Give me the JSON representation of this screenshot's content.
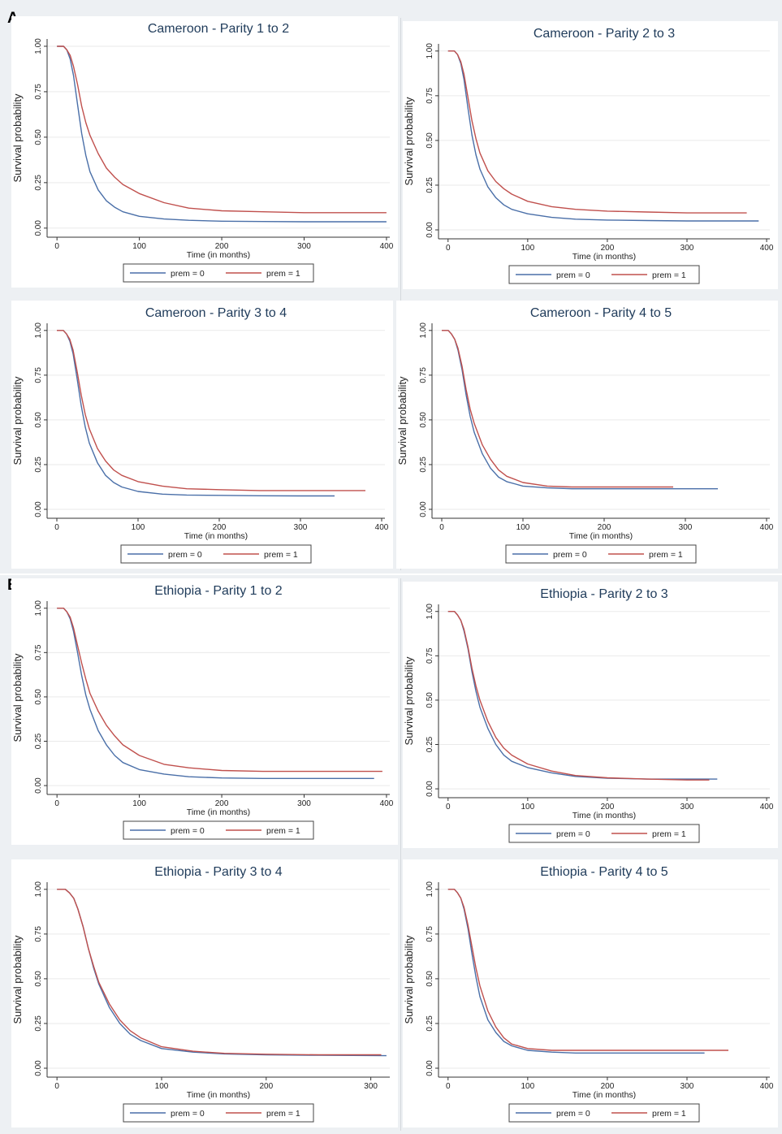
{
  "figure": {
    "panel_a_label": "A",
    "panel_b_label": "B"
  },
  "shared": {
    "ylabel": "Survival probability",
    "xlabel": "Time (in months)",
    "legend": [
      "prem = 0",
      "prem = 1"
    ],
    "colors": {
      "prem0": "#4a6fa8",
      "prem1": "#c0504d"
    }
  },
  "chart_data": [
    {
      "type": "line",
      "title": "Cameroon - Parity 1 to 2",
      "xlabel": "Time (in months)",
      "ylabel": "Survival probability",
      "xlim": [
        0,
        400
      ],
      "ylim": [
        0,
        1
      ],
      "xticks": [
        "0",
        "100",
        "200",
        "300",
        "400"
      ],
      "yticks": [
        "0.00",
        "0.25",
        "0.50",
        "0.75",
        "1.00"
      ],
      "legend": "bottom",
      "series": [
        {
          "name": "prem = 0",
          "x": [
            0,
            8,
            12,
            16,
            20,
            25,
            30,
            35,
            40,
            50,
            60,
            70,
            80,
            100,
            130,
            160,
            200,
            250,
            300,
            400
          ],
          "y": [
            1.0,
            1.0,
            0.98,
            0.93,
            0.84,
            0.68,
            0.52,
            0.4,
            0.31,
            0.21,
            0.15,
            0.115,
            0.09,
            0.065,
            0.05,
            0.043,
            0.038,
            0.036,
            0.035,
            0.035
          ]
        },
        {
          "name": "prem = 1",
          "x": [
            0,
            8,
            12,
            16,
            20,
            25,
            30,
            35,
            40,
            50,
            60,
            70,
            80,
            100,
            130,
            160,
            200,
            250,
            300,
            400
          ],
          "y": [
            1.0,
            1.0,
            0.98,
            0.95,
            0.89,
            0.79,
            0.67,
            0.58,
            0.51,
            0.41,
            0.33,
            0.28,
            0.24,
            0.19,
            0.14,
            0.11,
            0.095,
            0.09,
            0.085,
            0.085
          ]
        }
      ]
    },
    {
      "type": "line",
      "title": "Cameroon - Parity 2 to 3",
      "xlabel": "Time (in months)",
      "ylabel": "Survival probability",
      "xlim": [
        0,
        400
      ],
      "ylim": [
        0,
        1
      ],
      "xticks": [
        "0",
        "100",
        "200",
        "300",
        "400"
      ],
      "yticks": [
        "0.00",
        "0.25",
        "0.50",
        "0.75",
        "1.00"
      ],
      "legend": "bottom",
      "series": [
        {
          "name": "prem = 0",
          "x": [
            0,
            8,
            12,
            16,
            20,
            25,
            30,
            35,
            40,
            50,
            60,
            70,
            80,
            100,
            130,
            160,
            200,
            250,
            300,
            390
          ],
          "y": [
            1.0,
            1.0,
            0.98,
            0.93,
            0.84,
            0.68,
            0.53,
            0.42,
            0.34,
            0.24,
            0.18,
            0.14,
            0.115,
            0.09,
            0.07,
            0.06,
            0.055,
            0.052,
            0.05,
            0.05
          ]
        },
        {
          "name": "prem = 1",
          "x": [
            0,
            8,
            12,
            16,
            20,
            25,
            30,
            35,
            40,
            50,
            60,
            70,
            80,
            100,
            130,
            160,
            200,
            250,
            300,
            375
          ],
          "y": [
            1.0,
            1.0,
            0.98,
            0.94,
            0.87,
            0.74,
            0.61,
            0.51,
            0.43,
            0.33,
            0.27,
            0.23,
            0.2,
            0.16,
            0.13,
            0.115,
            0.105,
            0.1,
            0.095,
            0.095
          ]
        }
      ]
    },
    {
      "type": "line",
      "title": "Cameroon - Parity 3 to 4",
      "xlabel": "Time (in months)",
      "ylabel": "Survival probability",
      "xlim": [
        0,
        400
      ],
      "ylim": [
        0,
        1
      ],
      "xticks": [
        "0",
        "100",
        "200",
        "300",
        "400"
      ],
      "yticks": [
        "0.00",
        "0.25",
        "0.50",
        "0.75",
        "1.00"
      ],
      "legend": "bottom",
      "series": [
        {
          "name": "prem = 0",
          "x": [
            0,
            8,
            12,
            16,
            20,
            25,
            30,
            35,
            40,
            50,
            60,
            70,
            80,
            100,
            130,
            160,
            200,
            250,
            300,
            342
          ],
          "y": [
            1.0,
            1.0,
            0.98,
            0.94,
            0.87,
            0.73,
            0.58,
            0.46,
            0.37,
            0.26,
            0.19,
            0.15,
            0.125,
            0.1,
            0.085,
            0.08,
            0.078,
            0.076,
            0.075,
            0.075
          ]
        },
        {
          "name": "prem = 1",
          "x": [
            0,
            8,
            12,
            16,
            20,
            25,
            30,
            35,
            40,
            50,
            60,
            70,
            80,
            100,
            130,
            160,
            200,
            250,
            300,
            380
          ],
          "y": [
            1.0,
            1.0,
            0.98,
            0.95,
            0.89,
            0.77,
            0.64,
            0.53,
            0.45,
            0.34,
            0.27,
            0.22,
            0.19,
            0.155,
            0.13,
            0.115,
            0.11,
            0.105,
            0.105,
            0.105
          ]
        }
      ]
    },
    {
      "type": "line",
      "title": "Cameroon - Parity 4 to 5",
      "xlabel": "Time (in months)",
      "ylabel": "Survival probability",
      "xlim": [
        0,
        400
      ],
      "ylim": [
        0,
        1
      ],
      "xticks": [
        "0",
        "100",
        "200",
        "300",
        "400"
      ],
      "yticks": [
        "0.00",
        "0.25",
        "0.50",
        "0.75",
        "1.00"
      ],
      "legend": "bottom",
      "series": [
        {
          "name": "prem = 0",
          "x": [
            0,
            8,
            12,
            16,
            20,
            25,
            30,
            35,
            40,
            50,
            60,
            70,
            80,
            100,
            130,
            160,
            200,
            250,
            300,
            340
          ],
          "y": [
            1.0,
            1.0,
            0.98,
            0.95,
            0.89,
            0.78,
            0.64,
            0.52,
            0.43,
            0.31,
            0.23,
            0.18,
            0.155,
            0.13,
            0.12,
            0.115,
            0.115,
            0.115,
            0.115,
            0.115
          ]
        },
        {
          "name": "prem = 1",
          "x": [
            0,
            8,
            12,
            16,
            20,
            25,
            30,
            35,
            40,
            50,
            60,
            70,
            80,
            100,
            130,
            160,
            200,
            250,
            285
          ],
          "y": [
            1.0,
            1.0,
            0.98,
            0.95,
            0.9,
            0.8,
            0.67,
            0.56,
            0.48,
            0.36,
            0.28,
            0.22,
            0.185,
            0.15,
            0.13,
            0.125,
            0.125,
            0.125,
            0.125
          ]
        }
      ]
    },
    {
      "type": "line",
      "title": "Ethiopia - Parity 1 to 2",
      "xlabel": "Time (in months)",
      "ylabel": "Survival probability",
      "xlim": [
        0,
        400
      ],
      "ylim": [
        0,
        1
      ],
      "xticks": [
        "0",
        "100",
        "200",
        "300",
        "400"
      ],
      "yticks": [
        "0.00",
        "0.25",
        "0.50",
        "0.75",
        "1.00"
      ],
      "legend": "bottom",
      "series": [
        {
          "name": "prem = 0",
          "x": [
            0,
            8,
            12,
            16,
            20,
            25,
            30,
            35,
            40,
            50,
            60,
            70,
            80,
            100,
            130,
            160,
            200,
            250,
            300,
            385
          ],
          "y": [
            1.0,
            1.0,
            0.98,
            0.94,
            0.87,
            0.75,
            0.62,
            0.51,
            0.43,
            0.31,
            0.23,
            0.17,
            0.13,
            0.09,
            0.065,
            0.05,
            0.043,
            0.04,
            0.04,
            0.04
          ]
        },
        {
          "name": "prem = 1",
          "x": [
            0,
            8,
            12,
            16,
            20,
            25,
            30,
            35,
            40,
            50,
            60,
            70,
            80,
            100,
            130,
            160,
            200,
            250,
            300,
            395
          ],
          "y": [
            1.0,
            1.0,
            0.98,
            0.95,
            0.89,
            0.79,
            0.69,
            0.6,
            0.52,
            0.42,
            0.34,
            0.28,
            0.23,
            0.17,
            0.12,
            0.1,
            0.085,
            0.08,
            0.08,
            0.08
          ]
        }
      ]
    },
    {
      "type": "line",
      "title": "Ethiopia - Parity 2 to 3",
      "xlabel": "Time (in months)",
      "ylabel": "Survival probability",
      "xlim": [
        0,
        400
      ],
      "ylim": [
        0,
        1
      ],
      "xticks": [
        "0",
        "100",
        "200",
        "300",
        "400"
      ],
      "yticks": [
        "0.00",
        "0.25",
        "0.50",
        "0.75",
        "1.00"
      ],
      "legend": "bottom",
      "series": [
        {
          "name": "prem = 0",
          "x": [
            0,
            8,
            12,
            16,
            20,
            25,
            30,
            35,
            40,
            50,
            60,
            70,
            80,
            100,
            130,
            160,
            200,
            250,
            300,
            338
          ],
          "y": [
            1.0,
            1.0,
            0.98,
            0.95,
            0.89,
            0.79,
            0.66,
            0.55,
            0.46,
            0.34,
            0.25,
            0.19,
            0.155,
            0.12,
            0.09,
            0.07,
            0.06,
            0.055,
            0.055,
            0.055
          ]
        },
        {
          "name": "prem = 1",
          "x": [
            0,
            8,
            12,
            16,
            20,
            25,
            30,
            35,
            40,
            50,
            60,
            70,
            80,
            100,
            130,
            160,
            200,
            250,
            300,
            328
          ],
          "y": [
            1.0,
            1.0,
            0.98,
            0.95,
            0.9,
            0.8,
            0.68,
            0.58,
            0.5,
            0.38,
            0.29,
            0.23,
            0.19,
            0.14,
            0.1,
            0.075,
            0.062,
            0.055,
            0.05,
            0.05
          ]
        }
      ]
    },
    {
      "type": "line",
      "title": "Ethiopia - Parity 3 to 4",
      "xlabel": "Time (in months)",
      "ylabel": "Survival probability",
      "xlim": [
        0,
        315
      ],
      "ylim": [
        0,
        1
      ],
      "xticks": [
        "0",
        "100",
        "200",
        "300"
      ],
      "yticks": [
        "0.00",
        "0.25",
        "0.50",
        "0.75",
        "1.00"
      ],
      "legend": "bottom",
      "series": [
        {
          "name": "prem = 0",
          "x": [
            0,
            8,
            12,
            16,
            20,
            25,
            30,
            35,
            40,
            50,
            60,
            70,
            80,
            100,
            130,
            160,
            200,
            250,
            315
          ],
          "y": [
            1.0,
            1.0,
            0.98,
            0.95,
            0.89,
            0.79,
            0.67,
            0.56,
            0.47,
            0.34,
            0.25,
            0.19,
            0.155,
            0.11,
            0.09,
            0.08,
            0.075,
            0.072,
            0.07
          ]
        },
        {
          "name": "prem = 1",
          "x": [
            0,
            8,
            12,
            16,
            20,
            25,
            30,
            35,
            40,
            50,
            60,
            70,
            80,
            100,
            130,
            160,
            200,
            250,
            310
          ],
          "y": [
            1.0,
            1.0,
            0.98,
            0.95,
            0.89,
            0.79,
            0.67,
            0.57,
            0.48,
            0.36,
            0.27,
            0.21,
            0.17,
            0.12,
            0.095,
            0.083,
            0.078,
            0.075,
            0.075
          ]
        }
      ]
    },
    {
      "type": "line",
      "title": "Ethiopia - Parity 4 to 5",
      "xlabel": "Time (in months)",
      "ylabel": "Survival probability",
      "xlim": [
        0,
        400
      ],
      "ylim": [
        0,
        1
      ],
      "xticks": [
        "0",
        "100",
        "200",
        "300",
        "400"
      ],
      "yticks": [
        "0.00",
        "0.25",
        "0.50",
        "0.75",
        "1.00"
      ],
      "legend": "bottom",
      "series": [
        {
          "name": "prem = 0",
          "x": [
            0,
            8,
            12,
            16,
            20,
            25,
            30,
            35,
            40,
            50,
            60,
            70,
            80,
            100,
            130,
            160,
            200,
            250,
            300,
            322
          ],
          "y": [
            1.0,
            1.0,
            0.98,
            0.95,
            0.89,
            0.78,
            0.64,
            0.51,
            0.4,
            0.27,
            0.2,
            0.15,
            0.125,
            0.1,
            0.09,
            0.085,
            0.085,
            0.085,
            0.085,
            0.085
          ]
        },
        {
          "name": "prem = 1",
          "x": [
            0,
            8,
            12,
            16,
            20,
            25,
            30,
            35,
            40,
            50,
            60,
            70,
            80,
            100,
            130,
            160,
            200,
            250,
            300,
            352
          ],
          "y": [
            1.0,
            1.0,
            0.98,
            0.95,
            0.9,
            0.8,
            0.68,
            0.56,
            0.46,
            0.32,
            0.23,
            0.17,
            0.135,
            0.11,
            0.1,
            0.1,
            0.1,
            0.1,
            0.1,
            0.1
          ]
        }
      ]
    }
  ]
}
